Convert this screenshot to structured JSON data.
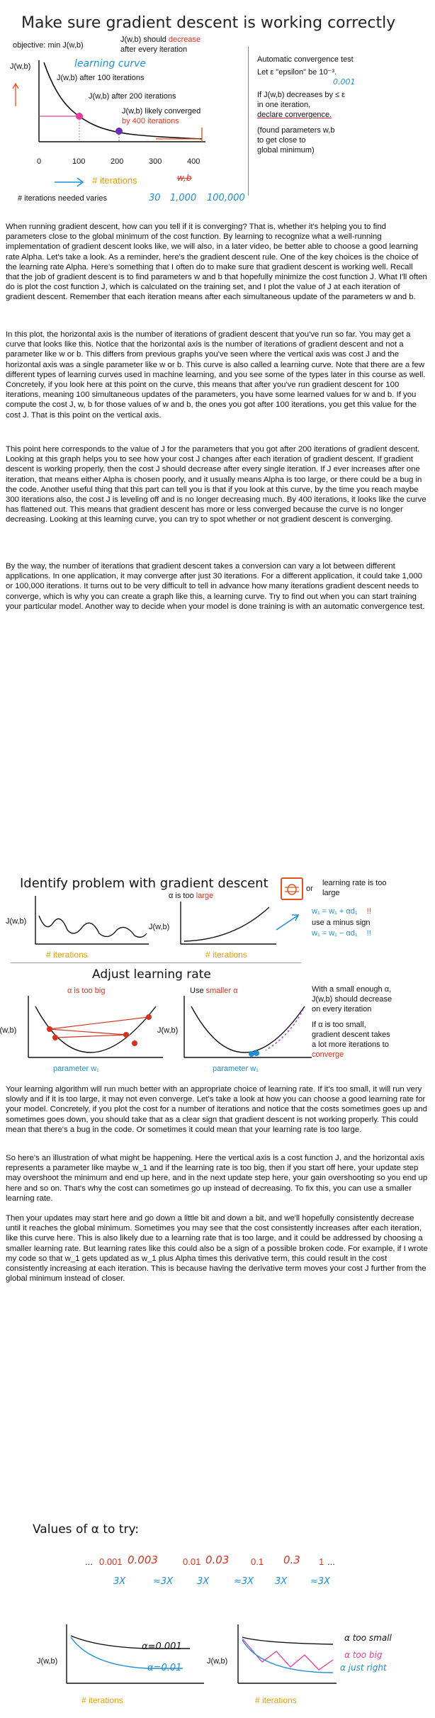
{
  "slide1": {
    "title": "Make sure gradient descent is working correctly",
    "objective": "objective: min J(w,b)",
    "should_decrease_prefix": "J(w,b) should",
    "should_decrease_word": "decrease",
    "after_every_iteration": "after every iteration",
    "learning_curve": "learning curve",
    "jwb_axis": "J(w,b)",
    "after_100": "J(w,b) after 100 iterations",
    "after_200": "J(w,b) after 200 iterations",
    "likely_converged": "J(w,b) likely converged",
    "by_400": "by 400 iterations",
    "x_ticks": [
      "0",
      "100",
      "200",
      "300",
      "400"
    ],
    "iterations_label": "# iterations",
    "wb_crossed": "w,b",
    "iterations_varies": "# iterations needed varies",
    "varies_values": [
      "30",
      "1,000",
      "100,000"
    ],
    "auto_test_title": "Automatic convergence test",
    "let_eps": "Let ε \"epsilon\" be 10⁻³.",
    "eps_value": "0.001",
    "if_decrease": "If J(w,b) decreases by ≤ ε",
    "in_one_iteration": "in one iteration,",
    "declare": "declare convergence.",
    "found_params_1": "(found parameters w,b",
    "found_params_2": "to get close to",
    "found_params_3": "global minimum)"
  },
  "paragraphs_1": [
    "When running gradient descent, how can you tell if it is converging? That is, whether it's helping you to find parameters close to the global minimum of the cost function. By learning to recognize what a well-running implementation of gradient descent looks like, we will also, in a later video, be better able to choose a good learning rate Alpha. Let's take a look. As a reminder, here's the gradient descent rule. One of the key choices is the choice of the learning rate Alpha. Here's something that I often do to make sure that gradient descent is working well. Recall that the job of gradient descent is to find parameters w and b that hopefully minimize the cost function J. What I'll often do is plot the cost function J, which is calculated on the training set, and I plot the value of J at each iteration of gradient descent. Remember that each iteration means after each simultaneous update of the parameters w and b.",
    "In this plot, the horizontal axis is the number of iterations of gradient descent that you've run so far. You may get a curve that looks like this. Notice that the horizontal axis is the number of iterations of gradient descent and not a parameter like w or b. This differs from previous graphs you've seen where the vertical axis was cost J and the horizontal axis was a single parameter like w or b. This curve is also called a learning curve. Note that there are a few different types of learning curves used in machine learning, and you see some of the types later in this course as well. Concretely, if you look here at this point on the curve, this means that after you've run gradient descent for 100 iterations, meaning 100 simultaneous updates of the parameters, you have some learned values for w and b. If you compute the cost J, w, b for those values of w and b, the ones you got after 100 iterations, you get this value for the cost J. That is this point on the vertical axis.",
    "This point here corresponds to the value of J for the parameters that you got after 200 iterations of gradient descent. Looking at this graph helps you to see how your cost J changes after each iteration of gradient descent. If gradient descent is working properly, then the cost J should decrease after every single iteration. If J ever increases after one iteration, that means either Alpha is chosen poorly, and it usually means Alpha is too large, or there could be a bug in the code. Another useful thing that this part can tell you is that if you look at this curve, by the time you reach maybe 300 iterations also, the cost J is leveling off and is no longer decreasing much. By 400 iterations, it looks like the curve has flattened out. This means that gradient descent has more or less converged because the curve is no longer decreasing. Looking at this learning curve, you can try to spot whether or not gradient descent is converging.",
    "By the way, the number of iterations that gradient descent takes a conversion can vary a lot between different applications. In one application, it may converge after just 30 iterations. For a different application, it could take 1,000 or 100,000 iterations. It turns out to be very difficult to tell in advance how many iterations gradient descent needs to converge, which is why you can create a graph like this, a learning curve. Try to find out when you can start training your particular model. Another way to decide when your model is done training is with an automatic convergence test."
  ],
  "slide2": {
    "title": "Identify problem with gradient descent",
    "jwb": "J(w,b)",
    "iterations": "# iterations",
    "alpha_is_too": "α is too",
    "large": "large",
    "or": "or",
    "lr_too_large_1": "learning rate is too",
    "lr_too_large_2": "large",
    "plus_update": "w₁ = w₁ + αd₁",
    "use_minus": "use a minus sign",
    "minus_update": "w₁ = w₁ − αd₁",
    "adjust_title": "Adjust learning rate",
    "too_big_prefix": "α is too",
    "big": "big",
    "use": "Use",
    "smaller_alpha": "smaller α",
    "small_enough_1": "With a small enough α,",
    "small_enough_2": "J(w,b) should decrease",
    "small_enough_3": "on every iteration",
    "too_small_1": "If α is too small,",
    "too_small_2": "gradient descent takes",
    "too_small_3": "a lot more iterations to",
    "too_small_4": "converge",
    "param_w1": "parameter w₁"
  },
  "paragraphs_2": [
    "Your learning algorithm will run much better with an appropriate choice of learning rate. If it's too small, it will run very slowly and if it is too large, it may not even converge. Let's take a look at how you can choose a good learning rate for your model. Concretely, if you plot the cost for a number of iterations and notice that the costs sometimes goes up and sometimes goes down, you should take that as a clear sign that gradient descent is not working properly. This could mean that there's a bug in the code. Or sometimes it could mean that your learning rate is too large.",
    "So here's an illustration of what might be happening. Here the vertical axis is a cost function J, and the horizontal axis represents a parameter like maybe w_1 and if the learning rate is too big, then if you start off here, your update step may overshoot the minimum and end up here, and in the next update step here, your gain overshooting so you end up here and so on. That's why the cost can sometimes go up instead of decreasing. To fix this, you can use a smaller learning rate.",
    "Then your updates may start here and go down a little bit and down a bit, and we'll hopefully consistently decrease until it reaches the global minimum. Sometimes you may see that the cost consistently increases after each iteration, like this curve here. This is also likely due to a learning rate that is too large, and it could be addressed by choosing a smaller learning rate. But learning rates like this could also be a sign of a possible broken code. For example, if I wrote my code so that w_1 gets updated as w_1 plus Alpha times this derivative term, this could result in the cost consistently increasing at each iteration. This is because having the derivative term moves your cost J further from the global minimum instead of closer."
  ],
  "slide3": {
    "title": "Values of α to try:",
    "ellipsis_left": "...",
    "values": [
      "0.001",
      "0.003",
      "0.01",
      "0.03",
      "0.1",
      "0.3",
      "1"
    ],
    "ellipsis_right": "...",
    "multipliers": [
      "3X",
      "≈3X",
      "3X",
      "≈3X",
      "3X",
      "≈3X"
    ],
    "jwb": "J(w,b)",
    "alpha_0001": "α=0.001",
    "alpha_001": "α=0.01",
    "iterations": "# iterations",
    "too_small": "α too small",
    "too_big": "α too big",
    "just_right": "α just right"
  }
}
